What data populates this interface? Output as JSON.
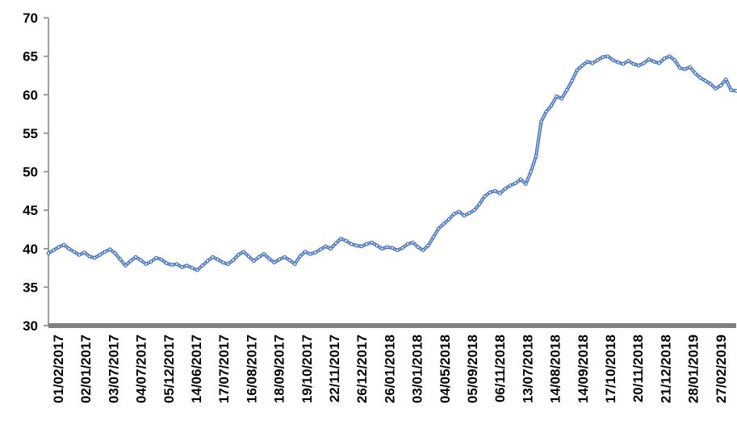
{
  "chart_data": {
    "type": "line",
    "title": "",
    "xlabel": "",
    "ylabel": "",
    "ylim": [
      30,
      70
    ],
    "yticks": [
      30,
      35,
      40,
      45,
      50,
      55,
      60,
      65,
      70
    ],
    "ytick_labels": [
      "30",
      "35",
      "40",
      "45",
      "50",
      "55",
      "60",
      "65",
      "70"
    ],
    "grid": false,
    "legend": "none",
    "colors": {
      "series": "#4472C4",
      "axis": "#808080"
    },
    "x_tick_labels": [
      "01/02/2017",
      "02/01/2017",
      "03/07/2017",
      "04/07/2017",
      "05/12/2017",
      "14/06/2017",
      "17/07/2017",
      "16/08/2017",
      "18/09/2017",
      "19/10/2017",
      "22/11/2017",
      "26/12/2017",
      "26/01/2018",
      "03/01/2018",
      "04/05/2018",
      "05/09/2018",
      "06/11/2018",
      "13/07/2018",
      "14/08/2018",
      "14/09/2018",
      "17/10/2018",
      "20/11/2018",
      "21/12/2018",
      "28/01/2019",
      "27/02/2019"
    ],
    "series": [
      {
        "values": [
          39.4,
          39.8,
          40.2,
          40.5,
          40.0,
          39.6,
          39.2,
          39.5,
          39.0,
          38.8,
          39.2,
          39.6,
          39.9,
          39.4,
          38.6,
          37.8,
          38.4,
          38.9,
          38.5,
          38.0,
          38.3,
          38.8,
          38.6,
          38.1,
          37.9,
          38.0,
          37.6,
          37.8,
          37.5,
          37.2,
          37.8,
          38.4,
          38.9,
          38.6,
          38.2,
          38.0,
          38.5,
          39.2,
          39.6,
          39.0,
          38.4,
          38.9,
          39.3,
          38.7,
          38.2,
          38.6,
          38.9,
          38.5,
          38.0,
          39.0,
          39.6,
          39.3,
          39.5,
          39.9,
          40.3,
          40.0,
          40.7,
          41.3,
          41.0,
          40.6,
          40.4,
          40.3,
          40.6,
          40.8,
          40.4,
          40.0,
          40.2,
          40.1,
          39.8,
          40.1,
          40.6,
          40.8,
          40.2,
          39.8,
          40.4,
          41.5,
          42.6,
          43.2,
          43.8,
          44.5,
          44.8,
          44.3,
          44.6,
          45.0,
          45.8,
          46.8,
          47.3,
          47.5,
          47.2,
          47.8,
          48.2,
          48.5,
          49.0,
          48.4,
          50.0,
          52.0,
          56.5,
          57.8,
          58.6,
          59.8,
          59.5,
          60.6,
          61.8,
          63.2,
          63.8,
          64.3,
          64.1,
          64.5,
          64.9,
          65.0,
          64.5,
          64.2,
          64.0,
          64.4,
          64.0,
          63.8,
          64.1,
          64.6,
          64.3,
          64.1,
          64.7,
          65.0,
          64.5,
          63.5,
          63.3,
          63.6,
          62.8,
          62.2,
          61.8,
          61.4,
          60.8,
          61.2,
          62.0,
          60.6,
          60.5
        ]
      }
    ]
  }
}
